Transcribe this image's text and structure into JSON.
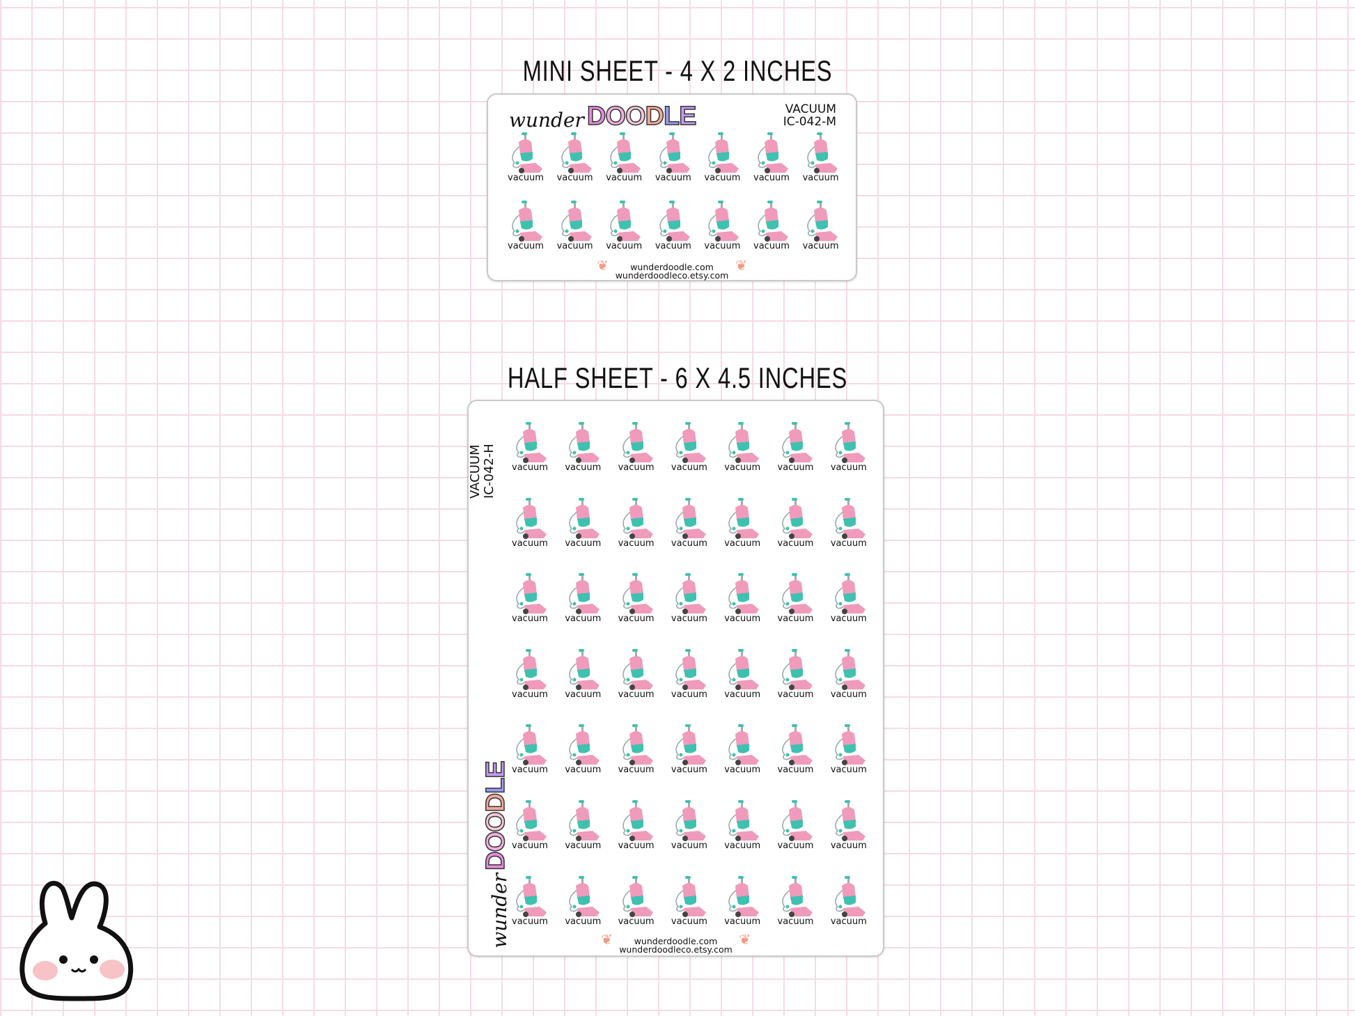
{
  "mini": {
    "title": "MINI SHEET - 4 X 2 INCHES",
    "logo_script": "wunder",
    "logo_bold": "DOODLE",
    "product": "VACUUM",
    "code": "IC-042-M",
    "cols": 7,
    "rows": 2,
    "item_label": "vacuum",
    "footer": [
      "wunderdoodle.com",
      "wunderdoodleco.etsy.com"
    ]
  },
  "half": {
    "title": "HALF SHEET - 6 X 4.5 INCHES",
    "logo_script": "wunder",
    "logo_bold": "DOODLE",
    "product": "VACUUM",
    "code": "IC-042-H",
    "cols": 7,
    "rows": 7,
    "item_label": "vacuum",
    "footer": [
      "wunderdoodle.com",
      "wunderdoodleco.etsy.com"
    ]
  },
  "colors": {
    "grid": "#f6dbe2",
    "vacuum_pink": "#f09bbb",
    "vacuum_teal": "#3fc1b0",
    "doodle_letters": [
      "#e58ce0",
      "#f0b0e0",
      "#f5c6d9",
      "#f3a999",
      "#9f9af0",
      "#c79af0"
    ]
  },
  "icons": [
    "vacuum-sticker",
    "bunny-mascot",
    "sprig-ornament"
  ]
}
